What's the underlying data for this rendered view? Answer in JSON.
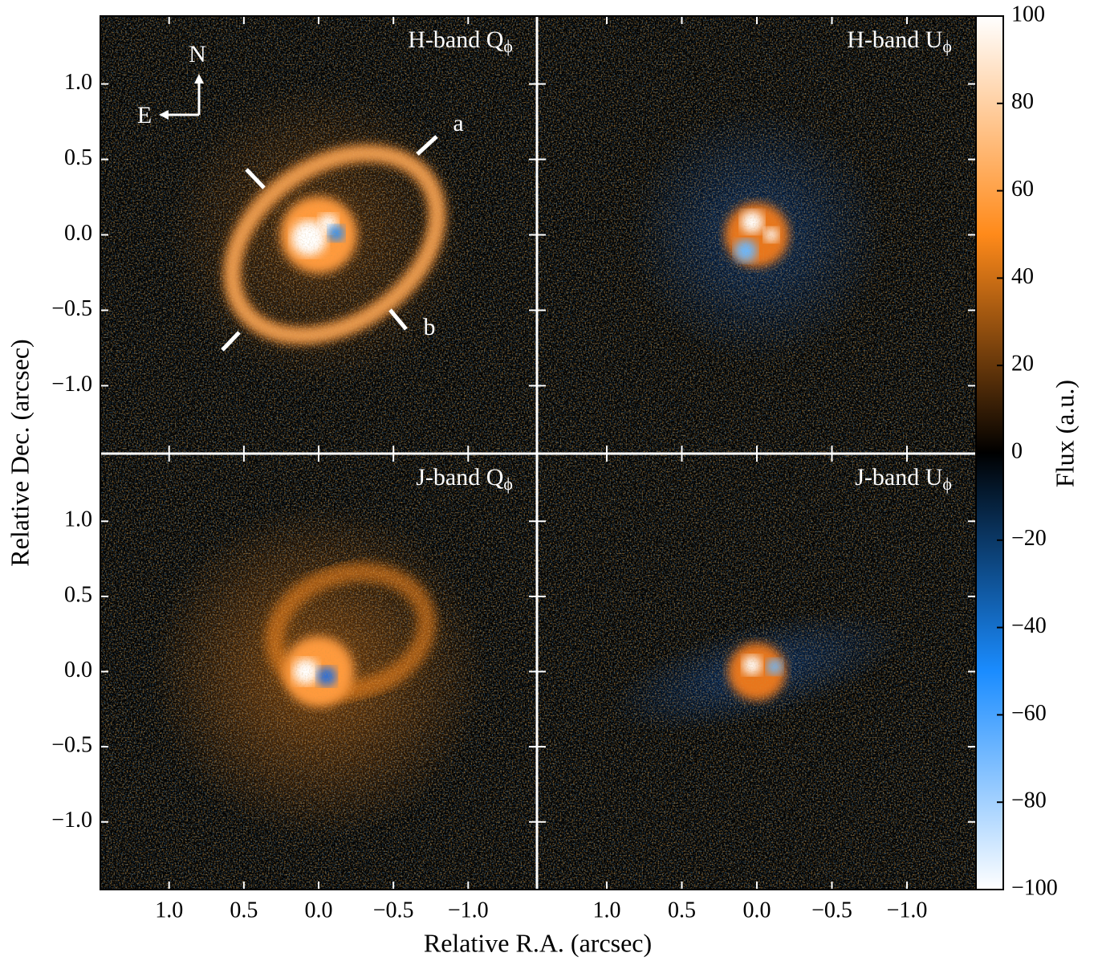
{
  "xlabel": "Relative R.A. (arcsec)",
  "ylabel": "Relative Dec. (arcsec)",
  "xlim": [
    1.46,
    -1.46
  ],
  "ylim": [
    -1.45,
    1.45
  ],
  "xticks": [
    {
      "value": 1.0,
      "label": "1.0"
    },
    {
      "value": 0.5,
      "label": "0.5"
    },
    {
      "value": 0.0,
      "label": "0.0"
    },
    {
      "value": -0.5,
      "label": "−0.5"
    },
    {
      "value": -1.0,
      "label": "−1.0"
    }
  ],
  "yticks": [
    {
      "value": 1.0,
      "label": "1.0"
    },
    {
      "value": 0.5,
      "label": "0.5"
    },
    {
      "value": 0.0,
      "label": "0.0"
    },
    {
      "value": -0.5,
      "label": "−0.5"
    },
    {
      "value": -1.0,
      "label": "−1.0"
    }
  ],
  "chart_data": [
    {
      "type": "image",
      "title": "H-band Q",
      "title_sub": "ϕ",
      "annotations": [
        "N",
        "E",
        "a",
        "b"
      ]
    },
    {
      "type": "image",
      "title": "H-band U",
      "title_sub": "ϕ"
    },
    {
      "type": "image",
      "title": "J-band Q",
      "title_sub": "ϕ"
    },
    {
      "type": "image",
      "title": "J-band U",
      "title_sub": "ϕ"
    }
  ],
  "colorbar": {
    "label": "Flux (a.u.)",
    "lim": [
      -100,
      100
    ],
    "colors": [
      "#ffffff",
      "#ff8a1a",
      "#000000",
      "#1a8cff",
      "#ffffff"
    ],
    "ticks": [
      100,
      80,
      60,
      40,
      20,
      0,
      {
        "value": -20,
        "label": "−20"
      },
      {
        "value": -40,
        "label": "−40"
      },
      {
        "value": -60,
        "label": "−60"
      },
      {
        "value": -80,
        "label": "−80"
      },
      {
        "value": -100,
        "label": "−100"
      }
    ]
  }
}
